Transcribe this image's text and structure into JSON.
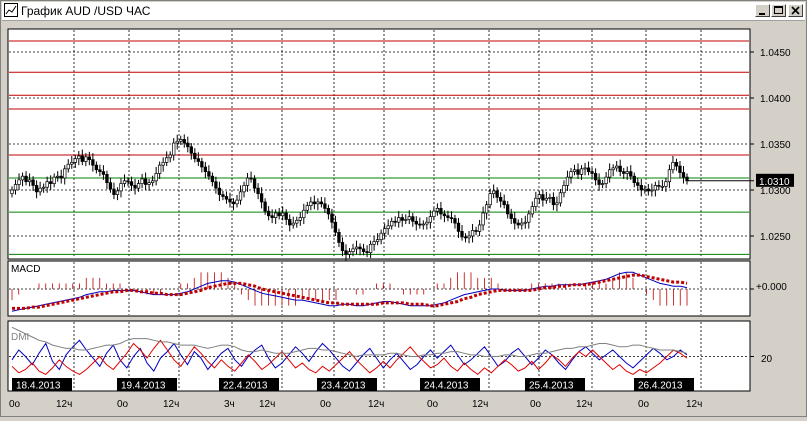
{
  "window": {
    "title": "График AUD /USD ЧАС",
    "icons": {
      "app": "chart-window-icon",
      "minimize": "minimize-icon",
      "maximize": "maximize-icon",
      "close": "close-icon"
    }
  },
  "colors": {
    "background": "#ffffff",
    "grid": "#000000",
    "resistance": "#c00000",
    "support": "#008000",
    "macd_line": "#0000c0",
    "macd_signal": "#c00000",
    "dmi_plus": "#0000c0",
    "dmi_minus": "#e00000",
    "adx": "#808080"
  },
  "chart_data": [
    {
      "type": "candlestick",
      "title": "",
      "price_axis_labels": [
        "1.0450",
        "1.0400",
        "1.0350",
        "1.0300",
        "1.0250"
      ],
      "current_price_label": "1.0310",
      "ylim": [
        1.0225,
        1.0475
      ],
      "resistance_levels": [
        1.0462,
        1.0428,
        1.0403,
        1.0388,
        1.0338
      ],
      "support_levels": [
        1.0313,
        1.0276,
        1.023
      ],
      "close": [
        1.03,
        1.0306,
        1.0311,
        1.0315,
        1.0309,
        1.0311,
        1.0305,
        1.0298,
        1.0302,
        1.0303,
        1.0309,
        1.0307,
        1.0314,
        1.0315,
        1.0313,
        1.0323,
        1.0328,
        1.033,
        1.0334,
        1.0337,
        1.0331,
        1.0336,
        1.0333,
        1.0327,
        1.0322,
        1.032,
        1.0317,
        1.0308,
        1.0301,
        1.0295,
        1.0299,
        1.0307,
        1.031,
        1.0309,
        1.0305,
        1.0302,
        1.0307,
        1.0312,
        1.0306,
        1.0308,
        1.031,
        1.0318,
        1.0327,
        1.033,
        1.0335,
        1.0338,
        1.0351,
        1.0353,
        1.0355,
        1.0351,
        1.0347,
        1.034,
        1.0334,
        1.0331,
        1.0325,
        1.032,
        1.0315,
        1.0309,
        1.0302,
        1.0295,
        1.0293,
        1.029,
        1.0287,
        1.0285,
        1.0289,
        1.0298,
        1.0305,
        1.0313,
        1.0312,
        1.0302,
        1.0296,
        1.0287,
        1.0277,
        1.0272,
        1.027,
        1.0275,
        1.0272,
        1.0275,
        1.0268,
        1.0262,
        1.0264,
        1.0267,
        1.027,
        1.0278,
        1.0283,
        1.0287,
        1.0285,
        1.0287,
        1.0285,
        1.028,
        1.0274,
        1.0265,
        1.0254,
        1.0243,
        1.0234,
        1.023,
        1.0233,
        1.0236,
        1.0238,
        1.0236,
        1.0233,
        1.0232,
        1.0241,
        1.0244,
        1.0246,
        1.0253,
        1.0258,
        1.0261,
        1.0266,
        1.0265,
        1.027,
        1.0267,
        1.0268,
        1.0271,
        1.0266,
        1.0263,
        1.0262,
        1.0263,
        1.0265,
        1.0271,
        1.0277,
        1.028,
        1.0274,
        1.0272,
        1.027,
        1.0269,
        1.0264,
        1.0255,
        1.0249,
        1.0248,
        1.025,
        1.0256,
        1.0255,
        1.0262,
        1.0275,
        1.0284,
        1.0296,
        1.0299,
        1.0292,
        1.0288,
        1.0284,
        1.0274,
        1.0269,
        1.0264,
        1.0262,
        1.0264,
        1.0265,
        1.0274,
        1.0282,
        1.0291,
        1.0295,
        1.0289,
        1.0291,
        1.0292,
        1.0284,
        1.0286,
        1.0297,
        1.0305,
        1.0314,
        1.032,
        1.0322,
        1.0317,
        1.0323,
        1.0324,
        1.032,
        1.0318,
        1.0311,
        1.0306,
        1.0307,
        1.0314,
        1.0322,
        1.0324,
        1.0326,
        1.032,
        1.0318,
        1.032,
        1.0315,
        1.0308,
        1.0305,
        1.03,
        1.0301,
        1.0299,
        1.03,
        1.0305,
        1.0304,
        1.0304,
        1.0309,
        1.0322,
        1.033,
        1.0326,
        1.0319,
        1.0314,
        1.031
      ]
    },
    {
      "type": "line",
      "title": "MACD",
      "axis_labels": [
        "+0.000"
      ],
      "series": [
        {
          "name": "",
          "values": [
            -0.0016,
            -0.0015,
            -0.0014,
            -0.0013,
            -0.0012,
            -0.0011,
            -0.001,
            -0.0009,
            -0.0008,
            -0.0007,
            -0.0006,
            -0.0004,
            -0.0003,
            -0.0002,
            -0.0002,
            -0.0001,
            -0.0001,
            -0.0001,
            -0.0001,
            -0.0002,
            -0.0003,
            -0.0004,
            -0.0004,
            -0.0004,
            -0.0004,
            -0.0003,
            -0.0002,
            0.0,
            0.0002,
            0.0004,
            0.0005,
            0.0006,
            0.0006,
            0.0005,
            0.0003,
            0.0001,
            -0.0001,
            -0.0003,
            -0.0004,
            -0.0005,
            -0.0006,
            -0.0007,
            -0.0008,
            -0.0008,
            -0.0009,
            -0.001,
            -0.0011,
            -0.0012,
            -0.0012,
            -0.0011,
            -0.0011,
            -0.0012,
            -0.0012,
            -0.0011,
            -0.001,
            -0.0009,
            -0.0009,
            -0.001,
            -0.0011,
            -0.0012,
            -0.0012,
            -0.0012,
            -0.0012,
            -0.0011,
            -0.001,
            -0.0008,
            -0.0006,
            -0.0004,
            -0.0003,
            -0.0002,
            -0.0001,
            0.0,
            0.0,
            -0.0001,
            -0.0001,
            -0.0001,
            -0.0001,
            0.0,
            0.0001,
            0.0002,
            0.0002,
            0.0003,
            0.0003,
            0.0003,
            0.0003,
            0.0004,
            0.0005,
            0.0006,
            0.0007,
            0.0009,
            0.0011,
            0.0012,
            0.0012,
            0.001,
            0.0008,
            0.0006,
            0.0004,
            0.0003,
            0.0002,
            0.0002,
            0.0001
          ]
        },
        {
          "name": "",
          "values": [
            -0.0014,
            -0.0014,
            -0.0014,
            -0.0013,
            -0.0013,
            -0.0012,
            -0.0011,
            -0.001,
            -0.0009,
            -0.0008,
            -0.0007,
            -0.0006,
            -0.0005,
            -0.0004,
            -0.0003,
            -0.0002,
            -0.0002,
            -0.0001,
            -0.0001,
            -0.0002,
            -0.0002,
            -0.0003,
            -0.0003,
            -0.0004,
            -0.0004,
            -0.0004,
            -0.0003,
            -0.0002,
            -0.0001,
            0.0001,
            0.0002,
            0.0003,
            0.0004,
            0.0004,
            0.0004,
            0.0003,
            0.0002,
            0.0,
            -0.0001,
            -0.0002,
            -0.0003,
            -0.0004,
            -0.0005,
            -0.0006,
            -0.0007,
            -0.0008,
            -0.0009,
            -0.001,
            -0.001,
            -0.0011,
            -0.0011,
            -0.0011,
            -0.0011,
            -0.0011,
            -0.0011,
            -0.001,
            -0.001,
            -0.001,
            -0.001,
            -0.0011,
            -0.0011,
            -0.0011,
            -0.0012,
            -0.0012,
            -0.0011,
            -0.001,
            -0.0009,
            -0.0007,
            -0.0006,
            -0.0004,
            -0.0003,
            -0.0002,
            -0.0001,
            -0.0001,
            -0.0001,
            -0.0001,
            -0.0001,
            -0.0001,
            0.0,
            0.0001,
            0.0001,
            0.0002,
            0.0002,
            0.0003,
            0.0003,
            0.0003,
            0.0004,
            0.0005,
            0.0006,
            0.0007,
            0.0008,
            0.0009,
            0.001,
            0.001,
            0.0009,
            0.0008,
            0.0007,
            0.0006,
            0.0005,
            0.0005,
            0.0004
          ]
        }
      ]
    },
    {
      "type": "line",
      "title": "DMI",
      "axis_labels": [
        "20"
      ],
      "ylim": [
        0,
        40
      ],
      "series": [
        {
          "name": "",
          "values": [
            18,
            24,
            20,
            15,
            22,
            28,
            17,
            12,
            21,
            26,
            30,
            24,
            19,
            14,
            22,
            27,
            18,
            13,
            20,
            25,
            16,
            11,
            19,
            23,
            28,
            21,
            15,
            23,
            19,
            12,
            17,
            22,
            25,
            18,
            14,
            20,
            24,
            27,
            19,
            13,
            16,
            21,
            26,
            22,
            17,
            23,
            28,
            24,
            19,
            14,
            11,
            16,
            21,
            25,
            19,
            13,
            18,
            22,
            17,
            12,
            15,
            20,
            24,
            19,
            23,
            27,
            21,
            15,
            18,
            22,
            26,
            20,
            14,
            17,
            22,
            25,
            20,
            15,
            19,
            24,
            21,
            16,
            12,
            18,
            23,
            26,
            22,
            18,
            21,
            24,
            20,
            16,
            13,
            17,
            21,
            25,
            22,
            18,
            20,
            24,
            21
          ]
        },
        {
          "name": "",
          "values": [
            14,
            10,
            12,
            16,
            11,
            9,
            13,
            18,
            14,
            11,
            9,
            12,
            16,
            20,
            15,
            12,
            17,
            22,
            28,
            24,
            19,
            25,
            30,
            24,
            18,
            14,
            20,
            26,
            22,
            17,
            13,
            18,
            14,
            11,
            16,
            21,
            17,
            12,
            15,
            19,
            23,
            18,
            13,
            16,
            12,
            10,
            14,
            11,
            15,
            19,
            23,
            18,
            14,
            10,
            13,
            17,
            13,
            18,
            22,
            26,
            21,
            17,
            13,
            15,
            19,
            14,
            11,
            16,
            12,
            9,
            13,
            10,
            14,
            18,
            15,
            11,
            13,
            17,
            12,
            16,
            21,
            18,
            14,
            19,
            23,
            20,
            24,
            20,
            16,
            12,
            15,
            11,
            9,
            12,
            10,
            13,
            16,
            20,
            24,
            22,
            19
          ]
        },
        {
          "name": "",
          "values": [
            38,
            36,
            34,
            32,
            30,
            29,
            27,
            26,
            25,
            25,
            24,
            24,
            25,
            26,
            27,
            27,
            28,
            30,
            31,
            31,
            31,
            30,
            29,
            29,
            28,
            27,
            27,
            27,
            26,
            25,
            26,
            27,
            27,
            26,
            24,
            23,
            23,
            24,
            23,
            22,
            22,
            22,
            23,
            24,
            25,
            25,
            24,
            24,
            23,
            22,
            21,
            20,
            21,
            21,
            21,
            21,
            22,
            22,
            21,
            20,
            20,
            21,
            21,
            22,
            22,
            23,
            23,
            22,
            21,
            21,
            20,
            20,
            20,
            21,
            21,
            20,
            20,
            21,
            22,
            22,
            23,
            24,
            25,
            25,
            26,
            26,
            27,
            28,
            28,
            27,
            26,
            26,
            27,
            27,
            26,
            25,
            24,
            24,
            24,
            23,
            22
          ]
        }
      ]
    }
  ],
  "time_axis": {
    "date_labels": [
      "18.4.2013",
      "19.4.2013",
      "22.4.2013",
      "23.4.2013",
      "24.4.2013",
      "25.4.2013",
      "26.4.2013"
    ],
    "hour_labels": [
      "0o",
      "12ч",
      "0o",
      "12ч",
      "3ч",
      "12ч",
      "0o",
      "12ч",
      "0o",
      "12ч",
      "0o",
      "12ч",
      "0o",
      "12ч"
    ]
  }
}
